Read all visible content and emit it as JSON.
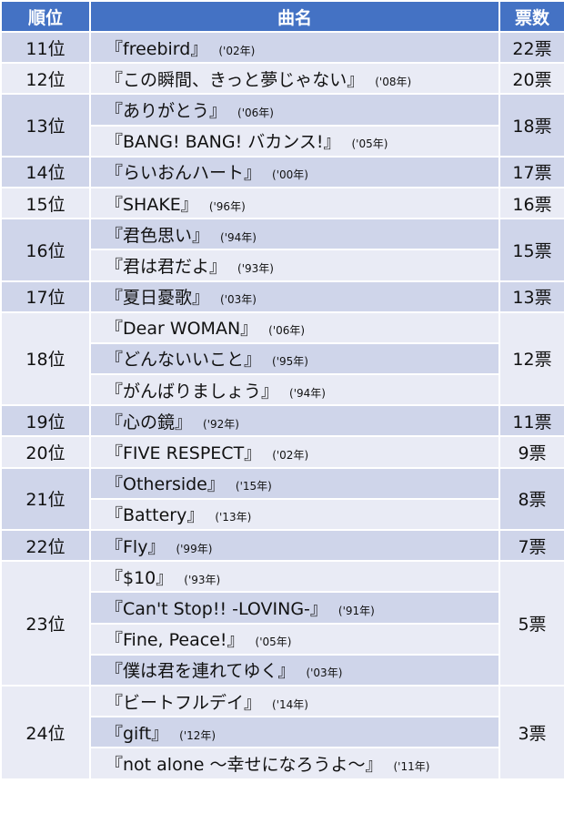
{
  "header": {
    "rank": "順位",
    "title": "曲名",
    "votes": "票数"
  },
  "colors": {
    "header": "#4472C4",
    "row_dark": "#CFD5EA",
    "row_light": "#E9EBF5"
  },
  "groups": [
    {
      "rank": "11位",
      "votes": "22票",
      "songs": [
        {
          "title": "『freebird』",
          "year": "('02年)"
        }
      ]
    },
    {
      "rank": "12位",
      "votes": "20票",
      "songs": [
        {
          "title": "『この瞬間、きっと夢じゃない』",
          "year": "('08年)"
        }
      ]
    },
    {
      "rank": "13位",
      "votes": "18票",
      "songs": [
        {
          "title": "『ありがとう』",
          "year": "('06年)"
        },
        {
          "title": "『BANG! BANG! バカンス!』",
          "year": "('05年)"
        }
      ]
    },
    {
      "rank": "14位",
      "votes": "17票",
      "songs": [
        {
          "title": "『らいおんハート』",
          "year": "('00年)"
        }
      ]
    },
    {
      "rank": "15位",
      "votes": "16票",
      "songs": [
        {
          "title": "『SHAKE』",
          "year": "('96年)"
        }
      ]
    },
    {
      "rank": "16位",
      "votes": "15票",
      "songs": [
        {
          "title": "『君色思い』",
          "year": "('94年)"
        },
        {
          "title": "『君は君だよ』",
          "year": "('93年)"
        }
      ]
    },
    {
      "rank": "17位",
      "votes": "13票",
      "songs": [
        {
          "title": "『夏日憂歌』",
          "year": "('03年)"
        }
      ]
    },
    {
      "rank": "18位",
      "votes": "12票",
      "songs": [
        {
          "title": "『Dear WOMAN』",
          "year": "('06年)"
        },
        {
          "title": "『どんないいこと』",
          "year": "('95年)"
        },
        {
          "title": "『がんばりましょう』",
          "year": "('94年)"
        }
      ]
    },
    {
      "rank": "19位",
      "votes": "11票",
      "songs": [
        {
          "title": "『心の鏡』",
          "year": "('92年)"
        }
      ]
    },
    {
      "rank": "20位",
      "votes": "9票",
      "songs": [
        {
          "title": "『FIVE RESPECT』",
          "year": "('02年)"
        }
      ]
    },
    {
      "rank": "21位",
      "votes": "8票",
      "songs": [
        {
          "title": "『Otherside』",
          "year": "('15年)"
        },
        {
          "title": "『Battery』",
          "year": "('13年)"
        }
      ]
    },
    {
      "rank": "22位",
      "votes": "7票",
      "songs": [
        {
          "title": "『Fly』",
          "year": "('99年)"
        }
      ]
    },
    {
      "rank": "23位",
      "votes": "5票",
      "songs": [
        {
          "title": "『$10』",
          "year": "('93年)"
        },
        {
          "title": "『Can't Stop!! -LOVING-』",
          "year": "('91年)"
        },
        {
          "title": "『Fine, Peace!』",
          "year": "('05年)"
        },
        {
          "title": "『僕は君を連れてゆく』",
          "year": "('03年)"
        }
      ]
    },
    {
      "rank": "24位",
      "votes": "3票",
      "songs": [
        {
          "title": "『ビートフルデイ』",
          "year": "('14年)"
        },
        {
          "title": "『gift』",
          "year": "('12年)"
        },
        {
          "title": "『not alone 〜幸せになろうよ〜』",
          "year": "('11年)"
        }
      ]
    }
  ]
}
